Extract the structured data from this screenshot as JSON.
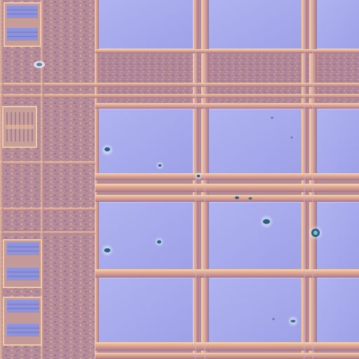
{
  "image": {
    "subject": "chip-die-micrograph",
    "palette": {
      "pad_fill": "#a6a9ec",
      "pad_fill_light": "#b7b9f2",
      "pad_edge_light": "#e6d7ff",
      "metal_trace": "#e3b190",
      "metal_highlight": "#f5d1b2",
      "metal_shadow": "#b37e82",
      "logic_area": "#b48b9b",
      "logic_texture": "#9e7187",
      "inset_blue": "#8b8fd9",
      "dust_particle": "#2f5e7a",
      "dust_halo": "#dff6ff"
    }
  }
}
